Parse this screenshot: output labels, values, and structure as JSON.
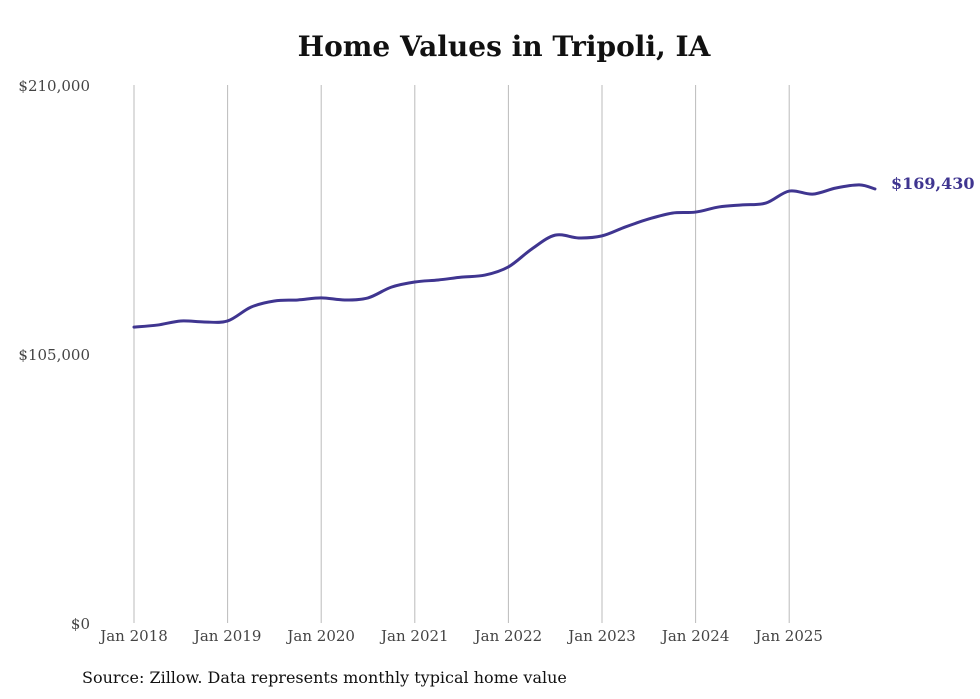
{
  "chart_data": {
    "type": "line",
    "title": "Home Values in Tripoli, IA",
    "source": "Source: Zillow. Data represents monthly typical home value",
    "xlabel": "",
    "ylabel": "",
    "ylim": [
      0,
      210000
    ],
    "y_ticks": [
      0,
      105000,
      210000
    ],
    "y_tick_labels": [
      "$0",
      "$105,000",
      "$210,000"
    ],
    "x_tick_labels": [
      "Jan 2018",
      "Jan 2019",
      "Jan 2020",
      "Jan 2021",
      "Jan 2022",
      "Jan 2023",
      "Jan 2024",
      "Jan 2025"
    ],
    "grid": "vertical",
    "line_color": "#3f3590",
    "end_label": "$169,430",
    "series": [
      {
        "name": "Typical home value",
        "x": [
          "2018-01",
          "2018-04",
          "2018-07",
          "2018-10",
          "2019-01",
          "2019-04",
          "2019-07",
          "2019-10",
          "2020-01",
          "2020-04",
          "2020-07",
          "2020-10",
          "2021-01",
          "2021-04",
          "2021-07",
          "2021-10",
          "2022-01",
          "2022-04",
          "2022-07",
          "2022-10",
          "2023-01",
          "2023-04",
          "2023-07",
          "2023-10",
          "2024-01",
          "2024-04",
          "2024-07",
          "2024-10",
          "2025-01",
          "2025-04",
          "2025-07",
          "2025-10",
          "2025-12"
        ],
        "values": [
          115500,
          116300,
          117900,
          117500,
          117900,
          123300,
          125700,
          126100,
          126900,
          126100,
          126900,
          131100,
          133100,
          133900,
          135000,
          135800,
          139000,
          146000,
          151400,
          150300,
          151100,
          154600,
          157700,
          160000,
          160400,
          162400,
          163200,
          163900,
          168600,
          167400,
          169800,
          171000,
          169430
        ]
      }
    ]
  }
}
